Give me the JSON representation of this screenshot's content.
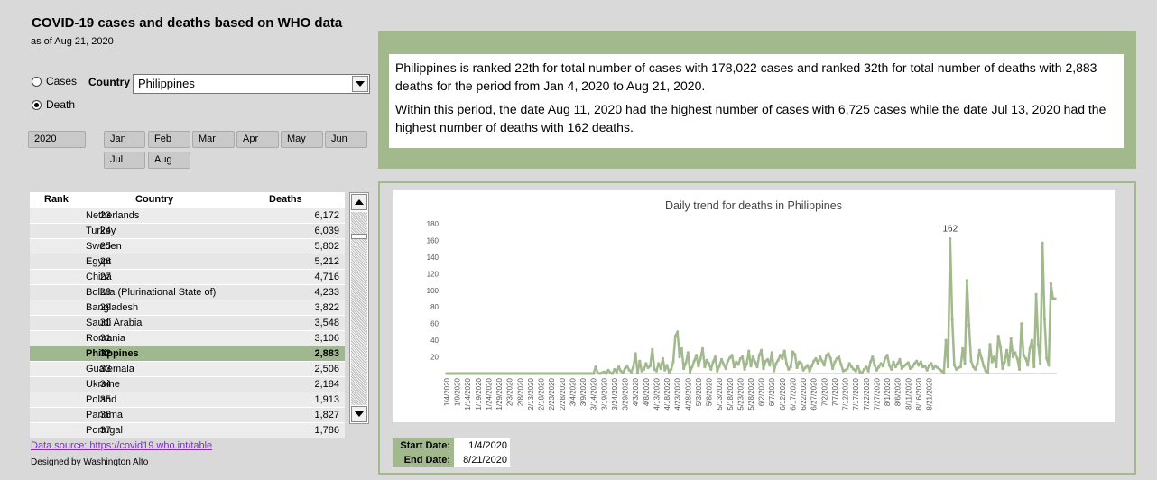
{
  "header": {
    "title": "COVID-19 cases and deaths based on WHO data",
    "as_of": "as of Aug 21, 2020"
  },
  "controls": {
    "radio_cases": "Cases",
    "radio_death": "Death",
    "selected_metric": "Death",
    "country_label": "Country",
    "country_value": "Philippines"
  },
  "slicers": {
    "year": "2020",
    "months": [
      "Jan",
      "Feb",
      "Mar",
      "Apr",
      "May",
      "Jun",
      "Jul",
      "Aug"
    ]
  },
  "ranking": {
    "headers": {
      "rank": "Rank",
      "country": "Country",
      "value": "Deaths"
    },
    "rows": [
      {
        "rank": "23",
        "country": "Netherlands",
        "value": "6,172"
      },
      {
        "rank": "24",
        "country": "Turkey",
        "value": "6,039"
      },
      {
        "rank": "25",
        "country": "Sweden",
        "value": "5,802"
      },
      {
        "rank": "26",
        "country": "Egypt",
        "value": "5,212"
      },
      {
        "rank": "27",
        "country": "China",
        "value": "4,716"
      },
      {
        "rank": "28",
        "country": "Bolivia (Plurinational State of)",
        "value": "4,233"
      },
      {
        "rank": "29",
        "country": "Bangladesh",
        "value": "3,822"
      },
      {
        "rank": "30",
        "country": "Saudi Arabia",
        "value": "3,548"
      },
      {
        "rank": "31",
        "country": "Romania",
        "value": "3,106"
      },
      {
        "rank": "32",
        "country": "Philippines",
        "value": "2,883",
        "highlight": true
      },
      {
        "rank": "33",
        "country": "Guatemala",
        "value": "2,506"
      },
      {
        "rank": "34",
        "country": "Ukraine",
        "value": "2,184"
      },
      {
        "rank": "35",
        "country": "Poland",
        "value": "1,913"
      },
      {
        "rank": "36",
        "country": "Panama",
        "value": "1,827"
      },
      {
        "rank": "37",
        "country": "Portugal",
        "value": "1,786"
      }
    ]
  },
  "footer": {
    "data_source": "Data source: https://covid19.who.int/table",
    "designed_by": "Designed by Washington Alto"
  },
  "summary": {
    "para1": "Philippines is ranked 22th for total number of cases with 178,022 cases  and ranked 32th for total number of deaths with 2,883 deaths for the period from Jan 4, 2020 to Aug 21, 2020.",
    "para2": "Within this period, the date Aug 11, 2020 had the highest number of cases with 6,725 cases while the date Jul 13, 2020 had the highest number of deaths with 162 deaths."
  },
  "date_range": {
    "start_label": "Start Date:",
    "start_value": "1/4/2020",
    "end_label": "End Date:",
    "end_value": "8/21/2020"
  },
  "colors": {
    "accent_green": "#a2b98e",
    "highlight_row": "#9fb88f",
    "line": "#a2b98e",
    "link": "#7b2fbe"
  },
  "chart_data": {
    "type": "line",
    "title": "Daily trend for deaths in Philippines",
    "xlabel": "",
    "ylabel": "",
    "ylim": [
      0,
      180
    ],
    "yticks": [
      20,
      40,
      60,
      80,
      100,
      120,
      140,
      160,
      180
    ],
    "x_start": "1/4/2020",
    "x_end": "8/21/2020",
    "x_tick_labels": [
      "1/4/2020",
      "1/9/2020",
      "1/14/2020",
      "1/19/2020",
      "1/24/2020",
      "1/29/2020",
      "2/3/2020",
      "2/8/2020",
      "2/13/2020",
      "2/18/2020",
      "2/23/2020",
      "2/28/2020",
      "3/4/2020",
      "3/9/2020",
      "3/14/2020",
      "3/19/2020",
      "3/24/2020",
      "3/29/2020",
      "4/3/2020",
      "4/8/2020",
      "4/13/2020",
      "4/18/2020",
      "4/23/2020",
      "4/28/2020",
      "5/3/2020",
      "5/8/2020",
      "5/13/2020",
      "5/18/2020",
      "5/23/2020",
      "5/28/2020",
      "6/2/2020",
      "6/7/2020",
      "6/12/2020",
      "6/17/2020",
      "6/22/2020",
      "6/27/2020",
      "7/2/2020",
      "7/7/2020",
      "7/12/2020",
      "7/17/2020",
      "7/22/2020",
      "7/27/2020",
      "8/1/2020",
      "8/6/2020",
      "8/11/2020",
      "8/16/2020",
      "8/21/2020"
    ],
    "peak_label": "162",
    "values": [
      0,
      0,
      0,
      0,
      0,
      0,
      0,
      0,
      0,
      0,
      0,
      0,
      0,
      0,
      0,
      0,
      0,
      0,
      0,
      0,
      0,
      0,
      0,
      0,
      0,
      0,
      0,
      0,
      0,
      0,
      0,
      0,
      0,
      0,
      0,
      0,
      0,
      0,
      0,
      0,
      0,
      0,
      0,
      0,
      0,
      0,
      0,
      0,
      0,
      0,
      0,
      0,
      0,
      0,
      0,
      0,
      0,
      0,
      0,
      0,
      0,
      0,
      0,
      0,
      0,
      0,
      0,
      0,
      0,
      0,
      0,
      8,
      1,
      0,
      1,
      2,
      0,
      4,
      1,
      0,
      5,
      2,
      8,
      3,
      1,
      6,
      9,
      4,
      2,
      8,
      24,
      1,
      15,
      3,
      5,
      12,
      7,
      9,
      29,
      5,
      3,
      12,
      6,
      18,
      4,
      10,
      2,
      5,
      14,
      45,
      50,
      20,
      30,
      6,
      13,
      25,
      2,
      8,
      15,
      22,
      9,
      18,
      30,
      8,
      16,
      12,
      5,
      14,
      20,
      3,
      9,
      17,
      11,
      6,
      15,
      19,
      22,
      8,
      14,
      11,
      18,
      20,
      5,
      12,
      27,
      9,
      20,
      14,
      8,
      22,
      28,
      6,
      15,
      17,
      10,
      25,
      3,
      12,
      16,
      22,
      18,
      27,
      12,
      5,
      8,
      26,
      23,
      7,
      14,
      12,
      4,
      7,
      10,
      3,
      9,
      15,
      18,
      12,
      20,
      15,
      10,
      22,
      24,
      18,
      6,
      14,
      18,
      20,
      11,
      3,
      4,
      6,
      12,
      8,
      5,
      3,
      9,
      2,
      1,
      5,
      8,
      3,
      14,
      20,
      10,
      4,
      8,
      12,
      9,
      18,
      22,
      10,
      5,
      14,
      8,
      12,
      17,
      6,
      9,
      11,
      13,
      6,
      8,
      12,
      15,
      10,
      14,
      8,
      9,
      4,
      10,
      12,
      6,
      9,
      7,
      5,
      3,
      1,
      40,
      8,
      162,
      65,
      10,
      5,
      7,
      8,
      30,
      12,
      112,
      58,
      15,
      8,
      5,
      12,
      28,
      18,
      9,
      3,
      2,
      35,
      14,
      20,
      8,
      45,
      32,
      6,
      14,
      28,
      10,
      42,
      20,
      25,
      18,
      5,
      60,
      22,
      18,
      10,
      30,
      40,
      8,
      95,
      35,
      12,
      157,
      65,
      18,
      10,
      108,
      90,
      90
    ]
  }
}
